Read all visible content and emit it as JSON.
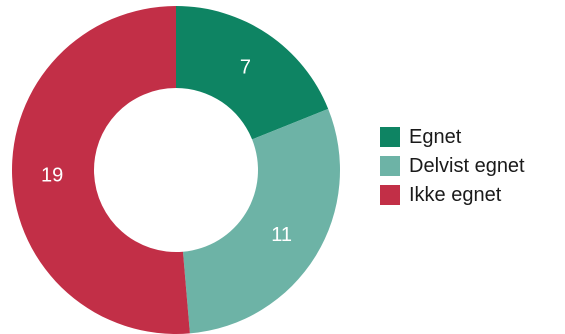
{
  "chart_data": {
    "type": "pie",
    "variant": "donut",
    "categories": [
      "Egnet",
      "Delvist egnet",
      "Ikke egnet"
    ],
    "values": [
      7,
      11,
      19
    ],
    "colors": [
      "#0e8463",
      "#6db3a6",
      "#c22f47"
    ],
    "title": "",
    "legend": {
      "position": "right",
      "entries": [
        "Egnet",
        "Delvist egnet",
        "Ikke egnet"
      ]
    }
  }
}
